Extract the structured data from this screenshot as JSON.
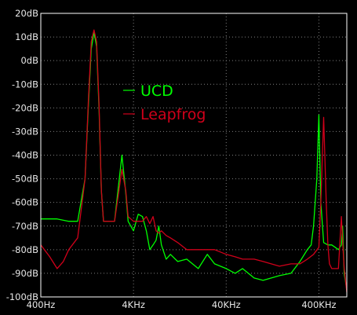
{
  "chart_data": {
    "type": "line",
    "title": "",
    "xlabel": "",
    "ylabel": "",
    "x_scale": "log",
    "x_range_hz": [
      400,
      800000
    ],
    "ylim": [
      -100,
      20
    ],
    "y_tick_labels": [
      "20dB",
      "10dB",
      "0dB",
      "-10dB",
      "-20dB",
      "-30dB",
      "-40dB",
      "-50dB",
      "-60dB",
      "-70dB",
      "-80dB",
      "-90dB",
      "-100dB"
    ],
    "y_tick_values": [
      20,
      10,
      0,
      -10,
      -20,
      -30,
      -40,
      -50,
      -60,
      -70,
      -80,
      -90,
      -100
    ],
    "x_tick_labels": [
      "400Hz",
      "4KHz",
      "40KHz",
      "400KHz"
    ],
    "x_tick_values": [
      400,
      4000,
      40000,
      400000
    ],
    "grid": true,
    "legend_position": "upper-left-center",
    "colors": {
      "background": "#000000",
      "grid": "#7f7f7f",
      "axis": "#ffffff",
      "ucd": "#00ff00",
      "leapfrog": "#d0001a"
    },
    "series": [
      {
        "name": "UCD",
        "color": "#00ff00",
        "x": [
          400,
          600,
          800,
          1000,
          1200,
          1300,
          1400,
          1500,
          1600,
          1700,
          1800,
          1900,
          2000,
          2100,
          2200,
          2300,
          2400,
          2500,
          3000,
          3300,
          3500,
          4000,
          4500,
          5000,
          5500,
          6000,
          6500,
          7000,
          7500,
          8000,
          9000,
          10000,
          12000,
          15000,
          20000,
          25000,
          30000,
          40000,
          50000,
          60000,
          80000,
          100000,
          150000,
          200000,
          250000,
          300000,
          330000,
          350000,
          380000,
          400000,
          420000,
          450000,
          500000,
          550000,
          600000,
          650000,
          700000,
          720000,
          750000,
          800000
        ],
        "y": [
          -67,
          -67,
          -68,
          -68,
          -50,
          -20,
          5,
          12,
          6,
          -20,
          -55,
          -68,
          -68,
          -68,
          -68,
          -68,
          -68,
          -68,
          -40,
          -56,
          -68,
          -72,
          -65,
          -66,
          -72,
          -80,
          -78,
          -76,
          -70,
          -78,
          -84,
          -82,
          -85,
          -84,
          -88,
          -82,
          -86,
          -88,
          -90,
          -88,
          -92,
          -93,
          -91,
          -90,
          -85,
          -80,
          -78,
          -70,
          -50,
          -23,
          -60,
          -77,
          -78,
          -78,
          -79,
          -80,
          -78,
          -70,
          -90,
          -97
        ]
      },
      {
        "name": "Leapfrog",
        "color": "#d0001a",
        "x": [
          400,
          500,
          600,
          700,
          800,
          1000,
          1200,
          1300,
          1400,
          1500,
          1600,
          1700,
          1800,
          1900,
          2000,
          2500,
          3000,
          3300,
          3500,
          4000,
          4500,
          5000,
          5500,
          6000,
          6500,
          7000,
          7500,
          8000,
          9000,
          10000,
          12000,
          15000,
          20000,
          25000,
          30000,
          40000,
          50000,
          60000,
          80000,
          100000,
          150000,
          200000,
          250000,
          300000,
          350000,
          400000,
          420000,
          450000,
          480000,
          500000,
          520000,
          550000,
          600000,
          650000,
          700000,
          720000,
          750000,
          800000
        ],
        "y": [
          -78,
          -83,
          -88,
          -85,
          -80,
          -75,
          -50,
          -18,
          8,
          13,
          8,
          -18,
          -55,
          -68,
          -68,
          -68,
          -46,
          -55,
          -66,
          -68,
          -68,
          -68,
          -66,
          -69,
          -66,
          -72,
          -73,
          -72,
          -74,
          -75,
          -77,
          -80,
          -80,
          -80,
          -80,
          -82,
          -83,
          -84,
          -84,
          -85,
          -87,
          -86,
          -86,
          -84,
          -82,
          -79,
          -60,
          -24,
          -60,
          -78,
          -86,
          -88,
          -88,
          -88,
          -66,
          -76,
          -88,
          -98
        ]
      }
    ]
  },
  "legend": {
    "ucd_label": "UCD",
    "leapfrog_label": "Leapfrog"
  }
}
